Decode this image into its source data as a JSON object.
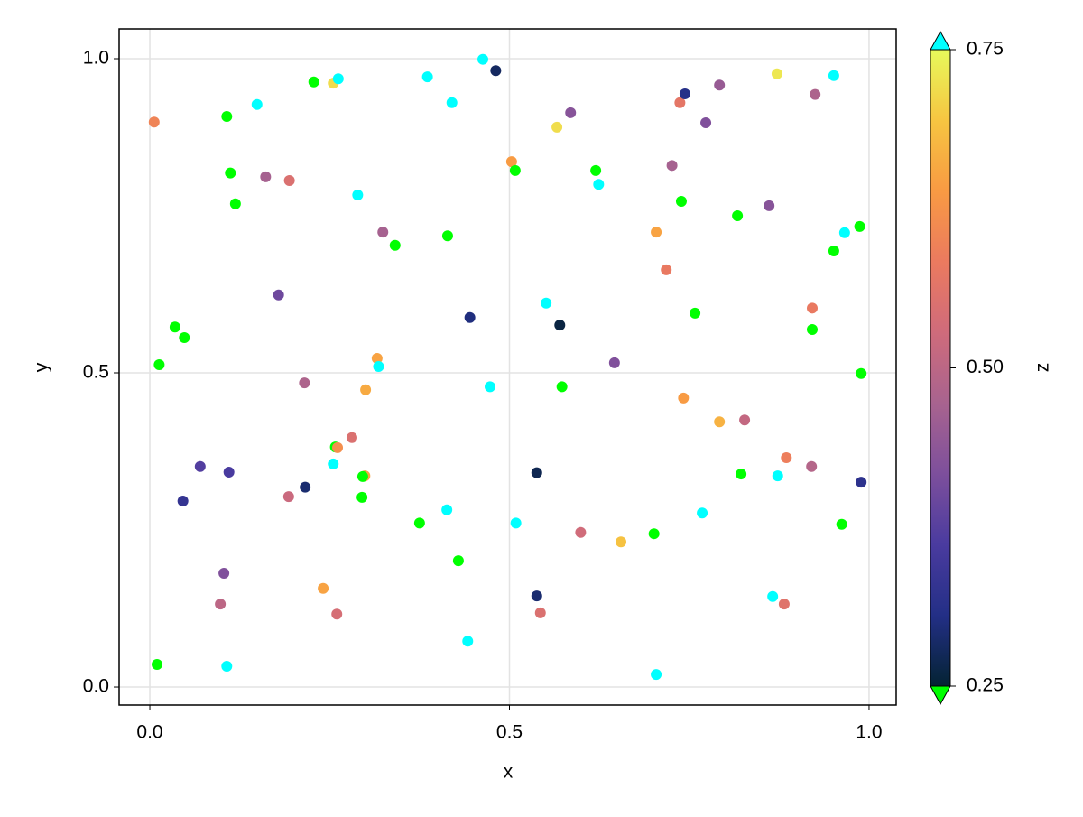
{
  "chart_data": {
    "type": "scatter",
    "x_label": "x",
    "y_label": "y",
    "colorbar_label": "z",
    "xlim": [
      -0.0427,
      1.0377
    ],
    "ylim": [
      -0.0287,
      1.0474
    ],
    "xticks": [
      {
        "value": 0,
        "label": "0.0"
      },
      0.5,
      {
        "value": 1,
        "label": "1.0"
      }
    ],
    "yticks": [
      {
        "value": 0,
        "label": "0.0"
      },
      0.5,
      {
        "value": 1,
        "label": "1.0"
      }
    ],
    "grid": true,
    "colorrange": [
      0.25,
      0.75
    ],
    "colorticks": [
      0.25,
      {
        "value": 0.5,
        "label": "0.50"
      },
      0.75
    ],
    "colormap": [
      "#042333",
      "#232f86",
      "#4a3b9f",
      "#7d4f9c",
      "#a8638f",
      "#cf6b7b",
      "#eb7a5f",
      "#f89a43",
      "#f6c541",
      "#e8fa5b"
    ],
    "lowclip": "#00ff00",
    "highclip": "#00ffff",
    "x": [
      0.006,
      0.107,
      0.149,
      0.228,
      0.255,
      0.262,
      0.386,
      0.463,
      0.481,
      0.42,
      0.112,
      0.161,
      0.194,
      0.119,
      0.289,
      0.324,
      0.341,
      0.414,
      0.179,
      0.035,
      0.048,
      0.013,
      0.316,
      0.318,
      0.3,
      0.215,
      0.445,
      0.473,
      0.503,
      0.508,
      0.566,
      0.585,
      0.551,
      0.57,
      0.573,
      0.62,
      0.624,
      0.646,
      0.704,
      0.718,
      0.737,
      0.744,
      0.726,
      0.739,
      0.773,
      0.792,
      0.872,
      0.925,
      0.951,
      0.817,
      0.861,
      0.966,
      0.987,
      0.951,
      0.758,
      0.921,
      0.921,
      0.989,
      0.742,
      0.792,
      0.827,
      0.885,
      0.92,
      0.989,
      0.822,
      0.873,
      0.768,
      0.962,
      0.07,
      0.11,
      0.046,
      0.216,
      0.193,
      0.258,
      0.261,
      0.281,
      0.255,
      0.299,
      0.296,
      0.295,
      0.375,
      0.413,
      0.429,
      0.538,
      0.509,
      0.599,
      0.655,
      0.701,
      0.103,
      0.098,
      0.241,
      0.26,
      0.538,
      0.543,
      0.442,
      0.01,
      0.107,
      0.704,
      0.866,
      0.882
    ],
    "y": [
      0.899,
      0.908,
      0.927,
      0.963,
      0.961,
      0.968,
      0.971,
      0.999,
      0.981,
      0.93,
      0.818,
      0.812,
      0.806,
      0.769,
      0.783,
      0.724,
      0.703,
      0.718,
      0.624,
      0.573,
      0.556,
      0.513,
      0.523,
      0.51,
      0.473,
      0.484,
      0.588,
      0.478,
      0.836,
      0.822,
      0.891,
      0.914,
      0.611,
      0.576,
      0.478,
      0.822,
      0.8,
      0.516,
      0.724,
      0.664,
      0.93,
      0.944,
      0.83,
      0.773,
      0.898,
      0.958,
      0.976,
      0.943,
      0.973,
      0.75,
      0.766,
      0.723,
      0.733,
      0.694,
      0.595,
      0.603,
      0.569,
      0.499,
      0.46,
      0.422,
      0.425,
      0.365,
      0.351,
      0.326,
      0.339,
      0.336,
      0.277,
      0.259,
      0.351,
      0.342,
      0.296,
      0.318,
      0.303,
      0.382,
      0.381,
      0.397,
      0.355,
      0.336,
      0.335,
      0.302,
      0.261,
      0.282,
      0.201,
      0.341,
      0.261,
      0.246,
      0.231,
      0.244,
      0.181,
      0.132,
      0.157,
      0.116,
      0.145,
      0.118,
      0.073,
      0.036,
      0.033,
      0.02,
      0.144,
      0.132
    ],
    "z": [
      0.6,
      0.2,
      0.8,
      0.2,
      0.72,
      0.8,
      0.8,
      0.8,
      0.28,
      0.8,
      0.2,
      0.47,
      0.55,
      0.2,
      0.8,
      0.47,
      0.2,
      0.2,
      0.4,
      0.2,
      0.2,
      0.2,
      0.65,
      0.8,
      0.66,
      0.48,
      0.3,
      0.8,
      0.64,
      0.2,
      0.72,
      0.43,
      0.8,
      0.26,
      0.2,
      0.2,
      0.8,
      0.42,
      0.65,
      0.58,
      0.57,
      0.31,
      0.47,
      0.2,
      0.42,
      0.45,
      0.73,
      0.48,
      0.8,
      0.2,
      0.43,
      0.8,
      0.2,
      0.2,
      0.2,
      0.58,
      0.2,
      0.2,
      0.64,
      0.67,
      0.51,
      0.59,
      0.49,
      0.32,
      0.2,
      0.8,
      0.8,
      0.2,
      0.37,
      0.36,
      0.33,
      0.29,
      0.52,
      0.2,
      0.62,
      0.55,
      0.8,
      0.65,
      0.2,
      0.2,
      0.2,
      0.8,
      0.2,
      0.27,
      0.8,
      0.53,
      0.69,
      0.2,
      0.42,
      0.5,
      0.65,
      0.54,
      0.29,
      0.55,
      0.8,
      0.2,
      0.8,
      0.8,
      0.8,
      0.56
    ]
  }
}
